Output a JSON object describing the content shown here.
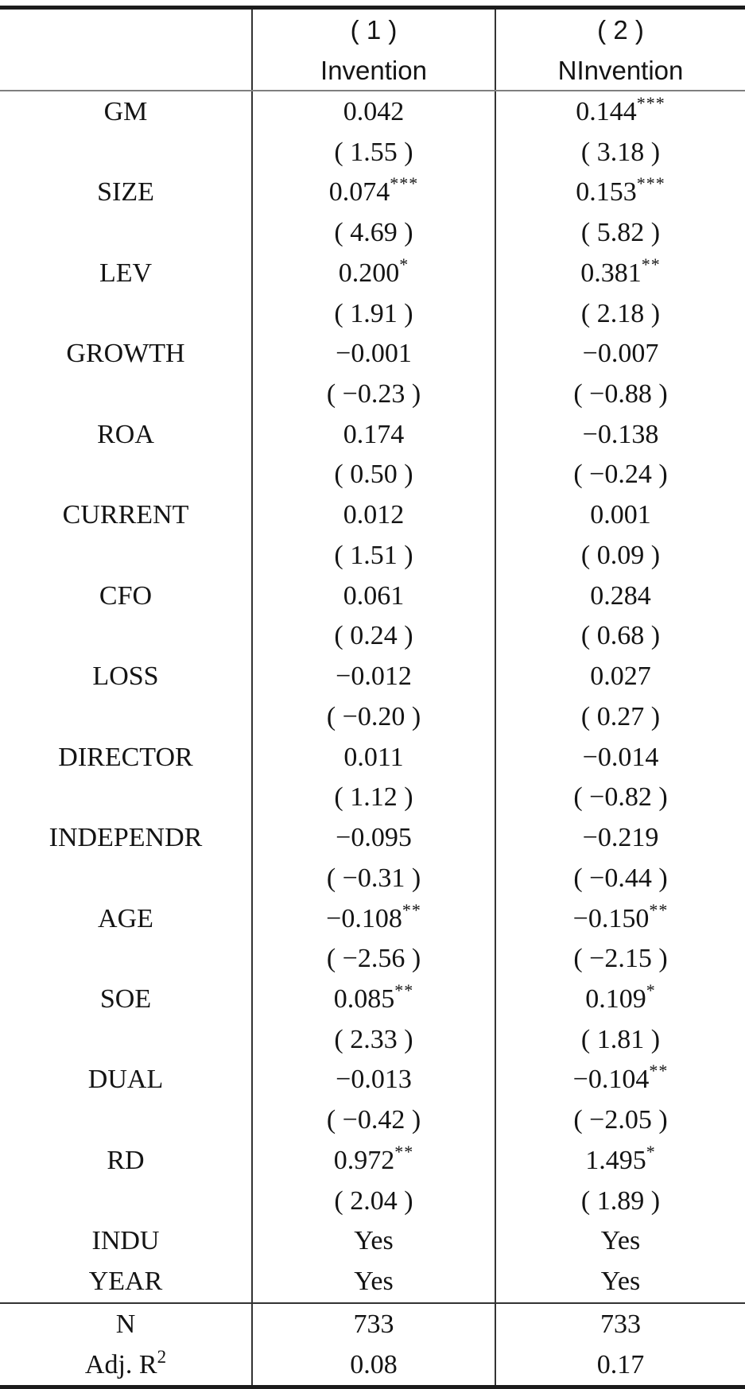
{
  "table": {
    "columns": [
      {
        "number": "( 1 )",
        "label": "Invention"
      },
      {
        "number": "( 2 )",
        "label": "NInvention"
      }
    ],
    "variables": [
      {
        "name": "GM",
        "cells": [
          {
            "coef": "0.042",
            "stars": "",
            "t": "( 1.55 )"
          },
          {
            "coef": "0.144",
            "stars": "***",
            "t": "( 3.18 )"
          }
        ]
      },
      {
        "name": "SIZE",
        "cells": [
          {
            "coef": "0.074",
            "stars": "***",
            "t": "( 4.69 )"
          },
          {
            "coef": "0.153",
            "stars": "***",
            "t": "( 5.82 )"
          }
        ]
      },
      {
        "name": "LEV",
        "cells": [
          {
            "coef": "0.200",
            "stars": "*",
            "t": "( 1.91 )"
          },
          {
            "coef": "0.381",
            "stars": "**",
            "t": "( 2.18 )"
          }
        ]
      },
      {
        "name": "GROWTH",
        "cells": [
          {
            "coef": "−0.001",
            "stars": "",
            "t": "( −0.23 )"
          },
          {
            "coef": "−0.007",
            "stars": "",
            "t": "( −0.88 )"
          }
        ]
      },
      {
        "name": "ROA",
        "cells": [
          {
            "coef": "0.174",
            "stars": "",
            "t": "( 0.50 )"
          },
          {
            "coef": "−0.138",
            "stars": "",
            "t": "( −0.24 )"
          }
        ]
      },
      {
        "name": "CURRENT",
        "cells": [
          {
            "coef": "0.012",
            "stars": "",
            "t": "( 1.51 )"
          },
          {
            "coef": "0.001",
            "stars": "",
            "t": "( 0.09 )"
          }
        ]
      },
      {
        "name": "CFO",
        "cells": [
          {
            "coef": "0.061",
            "stars": "",
            "t": "( 0.24 )"
          },
          {
            "coef": "0.284",
            "stars": "",
            "t": "( 0.68 )"
          }
        ]
      },
      {
        "name": "LOSS",
        "cells": [
          {
            "coef": "−0.012",
            "stars": "",
            "t": "( −0.20 )"
          },
          {
            "coef": "0.027",
            "stars": "",
            "t": "( 0.27 )"
          }
        ]
      },
      {
        "name": "DIRECTOR",
        "cells": [
          {
            "coef": "0.011",
            "stars": "",
            "t": "( 1.12 )"
          },
          {
            "coef": "−0.014",
            "stars": "",
            "t": "( −0.82 )"
          }
        ]
      },
      {
        "name": "INDEPENDR",
        "cells": [
          {
            "coef": "−0.095",
            "stars": "",
            "t": "( −0.31 )"
          },
          {
            "coef": "−0.219",
            "stars": "",
            "t": "( −0.44 )"
          }
        ]
      },
      {
        "name": "AGE",
        "cells": [
          {
            "coef": "−0.108",
            "stars": "**",
            "t": "( −2.56 )"
          },
          {
            "coef": "−0.150",
            "stars": "**",
            "t": "( −2.15 )"
          }
        ]
      },
      {
        "name": "SOE",
        "cells": [
          {
            "coef": "0.085",
            "stars": "**",
            "t": "( 2.33 )"
          },
          {
            "coef": "0.109",
            "stars": "*",
            "t": "( 1.81 )"
          }
        ]
      },
      {
        "name": "DUAL",
        "cells": [
          {
            "coef": "−0.013",
            "stars": "",
            "t": "( −0.42 )"
          },
          {
            "coef": "−0.104",
            "stars": "**",
            "t": "( −2.05 )"
          }
        ]
      },
      {
        "name": "RD",
        "cells": [
          {
            "coef": "0.972",
            "stars": "**",
            "t": "( 2.04 )"
          },
          {
            "coef": "1.495",
            "stars": "*",
            "t": "( 1.89 )"
          }
        ]
      },
      {
        "name": "INDU",
        "cells": [
          {
            "coef": "Yes",
            "stars": "",
            "t": null
          },
          {
            "coef": "Yes",
            "stars": "",
            "t": null
          }
        ]
      },
      {
        "name": "YEAR",
        "cells": [
          {
            "coef": "Yes",
            "stars": "",
            "t": null
          },
          {
            "coef": "Yes",
            "stars": "",
            "t": null
          }
        ]
      }
    ],
    "footer": [
      {
        "label": "N",
        "label_sup": "",
        "values": [
          "733",
          "733"
        ]
      },
      {
        "label": "Adj. R",
        "label_sup": "2",
        "values": [
          "0.08",
          "0.17"
        ]
      }
    ],
    "colors": {
      "text": "#141414",
      "border_heavy": "#1c1c1c",
      "border_mid": "#333333",
      "border_light": "#7f7f7f"
    }
  }
}
